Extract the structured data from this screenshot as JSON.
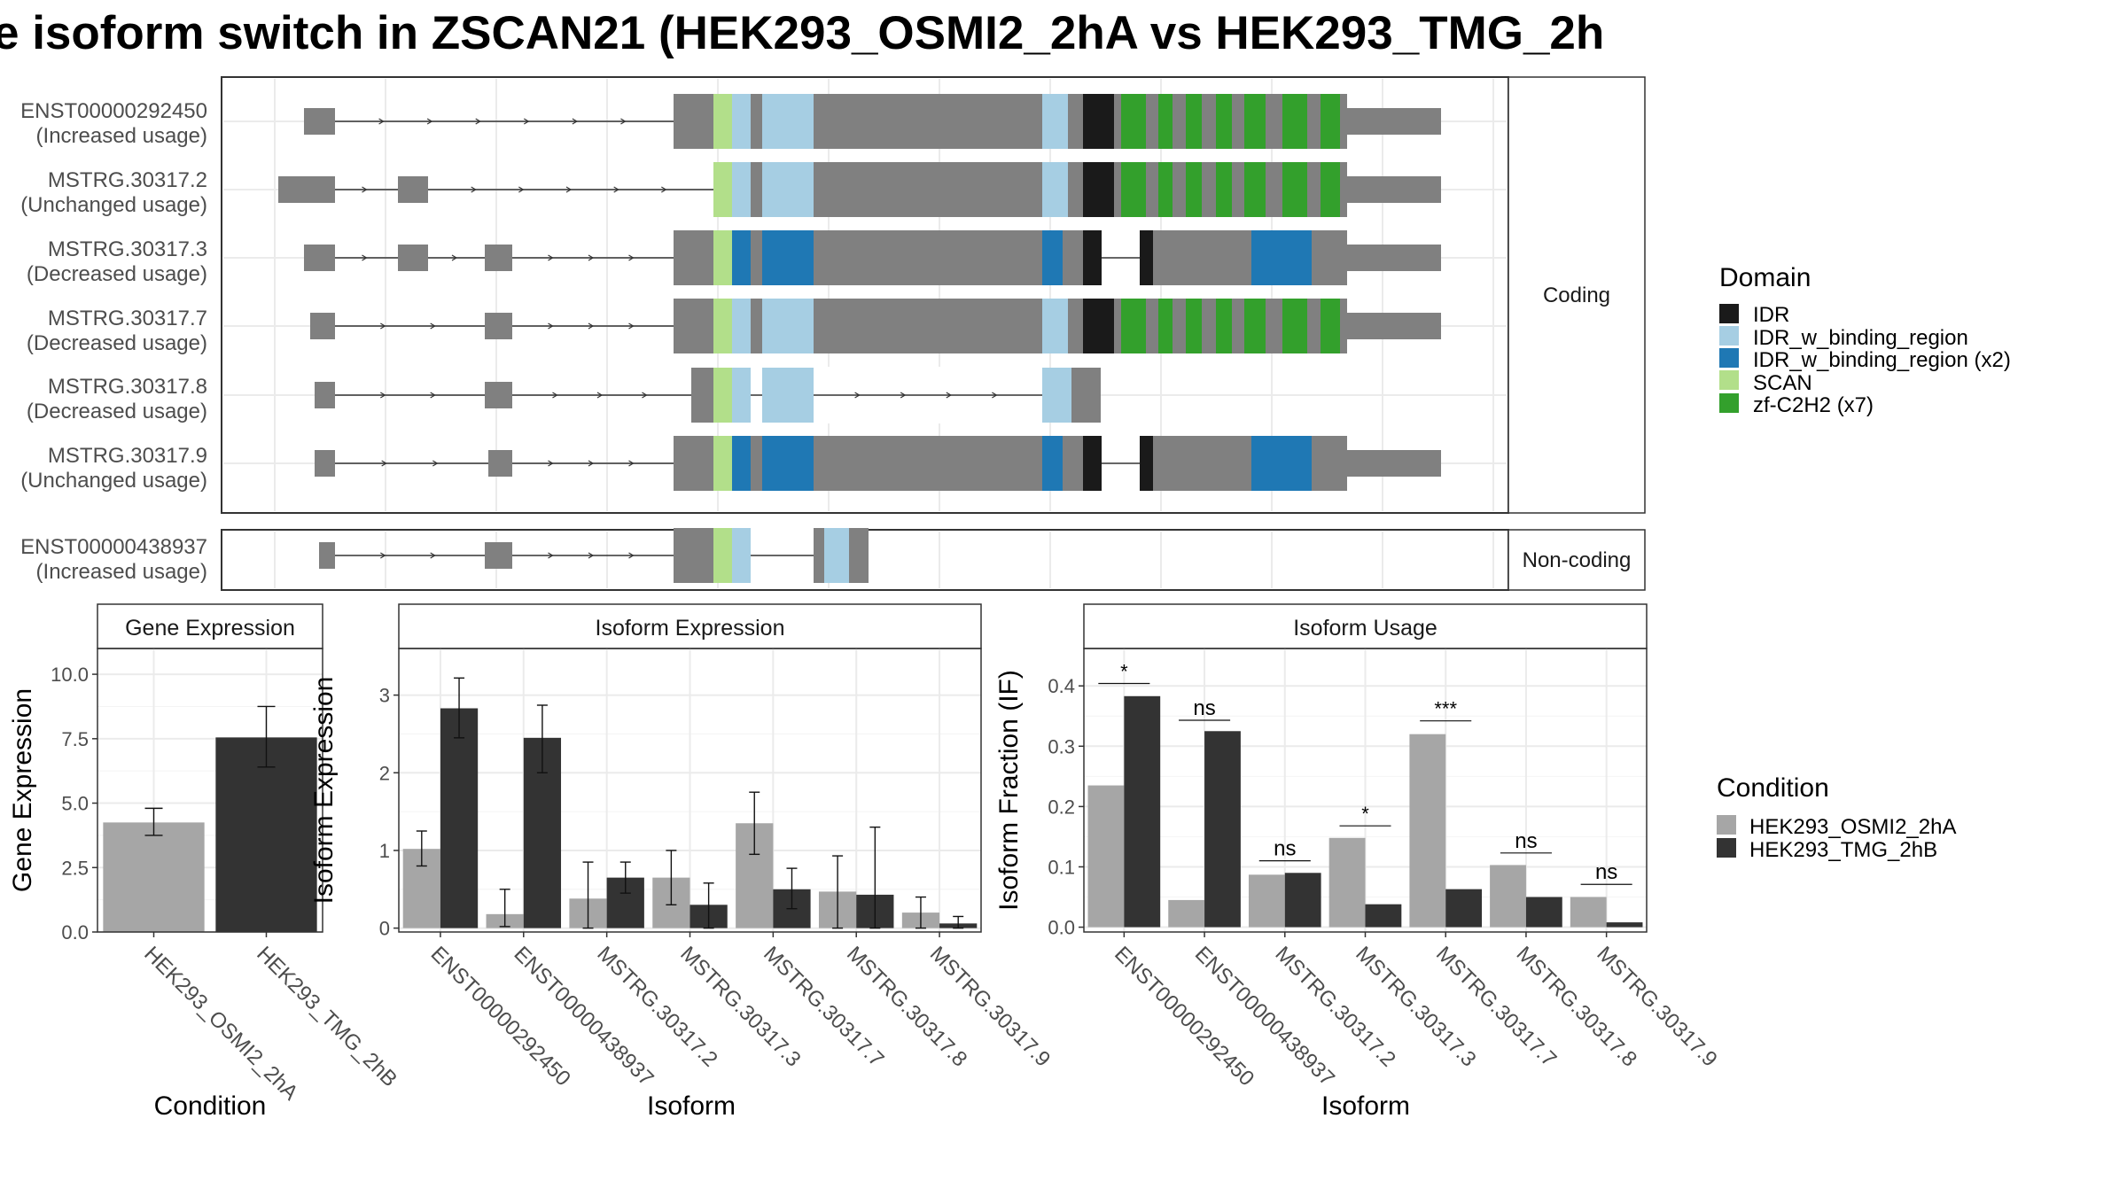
{
  "title": "e isoform switch in ZSCAN21 (HEK293_OSMI2_2hA vs HEK293_TMG_2h",
  "colors": {
    "IDR": "#1a1a1a",
    "IDR_w_binding_region": "#a6cee3",
    "IDR_w_binding_region_x2": "#1f78b4",
    "SCAN": "#b2df8a",
    "zf": "#33a02c",
    "exon": "#808080",
    "cond1": "#a6a6a6",
    "cond2": "#333333",
    "grid": "#ebebeb"
  },
  "structure_panel": {
    "coding_strip": "Coding",
    "noncoding_strip": "Non-coding",
    "isoforms": [
      {
        "id": "ENST00000292450",
        "usage": "(Increased usage)",
        "group": "coding"
      },
      {
        "id": "MSTRG.30317.2",
        "usage": "(Unchanged usage)",
        "group": "coding"
      },
      {
        "id": "MSTRG.30317.3",
        "usage": "(Decreased usage)",
        "group": "coding"
      },
      {
        "id": "MSTRG.30317.7",
        "usage": "(Decreased usage)",
        "group": "coding"
      },
      {
        "id": "MSTRG.30317.8",
        "usage": "(Decreased usage)",
        "group": "coding"
      },
      {
        "id": "MSTRG.30317.9",
        "usage": "(Unchanged usage)",
        "group": "coding"
      },
      {
        "id": "ENST00000438937",
        "usage": "(Increased usage)",
        "group": "non-coding"
      }
    ]
  },
  "legend_domain": {
    "title": "Domain",
    "items": [
      {
        "label": "IDR",
        "color": "#1a1a1a"
      },
      {
        "label": "IDR_w_binding_region",
        "color": "#a6cee3"
      },
      {
        "label": "IDR_w_binding_region (x2)",
        "color": "#1f78b4"
      },
      {
        "label": "SCAN",
        "color": "#b2df8a"
      },
      {
        "label": "zf-C2H2 (x7)",
        "color": "#33a02c"
      }
    ]
  },
  "legend_condition": {
    "title": "Condition",
    "items": [
      {
        "label": "HEK293_OSMI2_2hA",
        "color": "#a6a6a6"
      },
      {
        "label": "HEK293_TMG_2hB",
        "color": "#333333"
      }
    ]
  },
  "chart_data": [
    {
      "type": "bar",
      "title": "Gene Expression",
      "xlabel": "Condition",
      "ylabel": "Gene Expression",
      "categories": [
        "HEK293_OSMI2_2hA",
        "HEK293_TMG_2hB"
      ],
      "values": [
        4.25,
        7.55
      ],
      "errors": [
        [
          3.75,
          4.8
        ],
        [
          6.4,
          8.75
        ]
      ],
      "ylim": [
        0,
        11
      ],
      "yticks": [
        "0.0",
        "2.5",
        "5.0",
        "7.5",
        "10.0"
      ],
      "ytick_values": [
        0,
        2.5,
        5,
        7.5,
        10
      ]
    },
    {
      "type": "bar",
      "title": "Isoform Expression",
      "xlabel": "Isoform",
      "ylabel": "Isoform Expression",
      "categories": [
        "ENST00000292450",
        "ENST00000438937",
        "MSTRG.30317.2",
        "MSTRG.30317.3",
        "MSTRG.30317.7",
        "MSTRG.30317.8",
        "MSTRG.30317.9"
      ],
      "series": [
        {
          "name": "HEK293_OSMI2_2hA",
          "values": [
            1.02,
            0.18,
            0.38,
            0.65,
            1.35,
            0.47,
            0.2
          ],
          "errors": [
            [
              0.8,
              1.25
            ],
            [
              0.02,
              0.5
            ],
            [
              0.0,
              0.85
            ],
            [
              0.3,
              1.0
            ],
            [
              0.95,
              1.75
            ],
            [
              0.0,
              0.93
            ],
            [
              0.0,
              0.4
            ]
          ]
        },
        {
          "name": "HEK293_TMG_2hB",
          "values": [
            2.83,
            2.45,
            0.65,
            0.3,
            0.5,
            0.43,
            0.06
          ],
          "errors": [
            [
              2.45,
              3.22
            ],
            [
              2.0,
              2.87
            ],
            [
              0.45,
              0.85
            ],
            [
              0.0,
              0.58
            ],
            [
              0.25,
              0.77
            ],
            [
              0.0,
              1.3
            ],
            [
              0.0,
              0.15
            ]
          ]
        }
      ],
      "ylim": [
        -0.05,
        3.6
      ],
      "yticks": [
        "0",
        "1",
        "2",
        "3"
      ],
      "ytick_values": [
        0,
        1,
        2,
        3
      ]
    },
    {
      "type": "bar",
      "title": "Isoform Usage",
      "xlabel": "Isoform",
      "ylabel": "Isoform Fraction (IF)",
      "categories": [
        "ENST00000292450",
        "ENST00000438937",
        "MSTRG.30317.2",
        "MSTRG.30317.3",
        "MSTRG.30317.7",
        "MSTRG.30317.8",
        "MSTRG.30317.9"
      ],
      "series": [
        {
          "name": "HEK293_OSMI2_2hA",
          "values": [
            0.235,
            0.045,
            0.087,
            0.148,
            0.32,
            0.103,
            0.05
          ]
        },
        {
          "name": "HEK293_TMG_2hB",
          "values": [
            0.383,
            0.325,
            0.09,
            0.038,
            0.063,
            0.05,
            0.008
          ]
        }
      ],
      "significance": [
        "*",
        "ns",
        "ns",
        "*",
        "***",
        "ns",
        "ns"
      ],
      "sig_y": [
        0.404,
        0.343,
        0.11,
        0.168,
        0.342,
        0.123,
        0.071
      ],
      "ylim": [
        -0.008,
        0.462
      ],
      "yticks": [
        "0.0",
        "0.1",
        "0.2",
        "0.3",
        "0.4"
      ],
      "ytick_values": [
        0,
        0.1,
        0.2,
        0.3,
        0.4
      ]
    }
  ]
}
